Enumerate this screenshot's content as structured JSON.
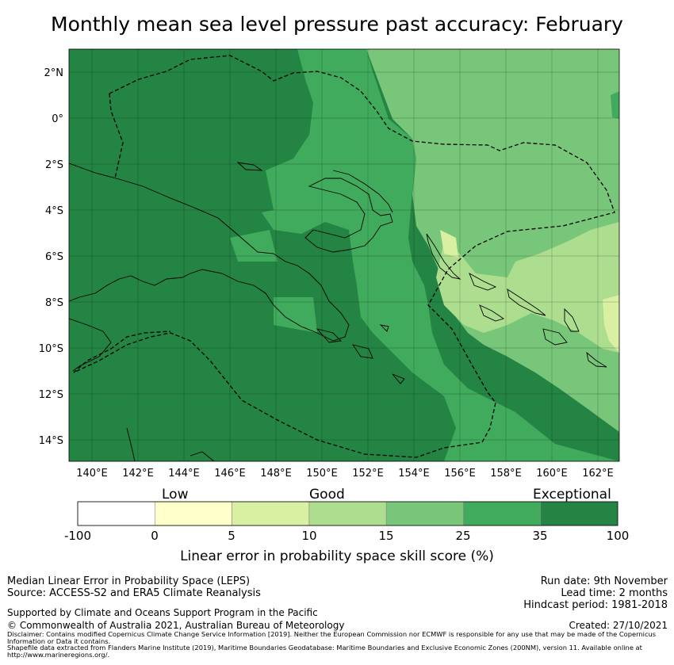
{
  "title": "Monthly mean sea level pressure past accuracy: February",
  "map": {
    "lat_ticks": [
      "2°N",
      "0°",
      "2°S",
      "4°S",
      "6°S",
      "8°S",
      "10°S",
      "12°S",
      "14°S"
    ],
    "lon_ticks": [
      "140°E",
      "142°E",
      "144°E",
      "146°E",
      "148°E",
      "150°E",
      "152°E",
      "154°E",
      "156°E",
      "158°E",
      "160°E",
      "162°E"
    ],
    "category_colors": [
      "#ffffff",
      "#ffffcc",
      "#d9f0a3",
      "#addd8e",
      "#78c679",
      "#41ab5d",
      "#238443"
    ],
    "boundary_color": "#000000"
  },
  "colorbar": {
    "category_labels": [
      "Low",
      "Good",
      "Exceptional"
    ],
    "ticks": [
      "-100",
      "0",
      "5",
      "10",
      "15",
      "25",
      "35",
      "100"
    ],
    "colors": [
      "#ffffff",
      "#ffffcc",
      "#d9f0a3",
      "#addd8e",
      "#78c679",
      "#41ab5d",
      "#238443"
    ],
    "axis_label": "Linear error in probability space skill score (%)"
  },
  "footer": {
    "left1": "Median Linear Error in Probability Space (LEPS)",
    "left2": "Source: ACCESS-S2 and ERA5 Climate Reanalysis",
    "left3": "Supported by Climate and Oceans Support Program in the Pacific",
    "left4": "© Commonwealth of Australia 2021, Australian Bureau of Meteorology",
    "right1": "Run date: 9th November",
    "right2": "Lead time: 2 months",
    "right3": "Hindcast period: 1981-2018",
    "right4": "Created: 27/10/2021",
    "disclaimer": "Disclaimer: Contains modified Copernicus Climate Change Service Information [2019]. Neither the European Commission nor ECMWF is responsible for any use that may be made of the Copernicus Information or Data it contains.",
    "shapefile": "Shapefile data extracted from Flanders Marine Institute (2019), Maritime Boundaries Geodatabase: Maritime Boundaries and Exclusive Economic Zones (200NM), version 11. Available online at http://www.marineregions.org/."
  }
}
